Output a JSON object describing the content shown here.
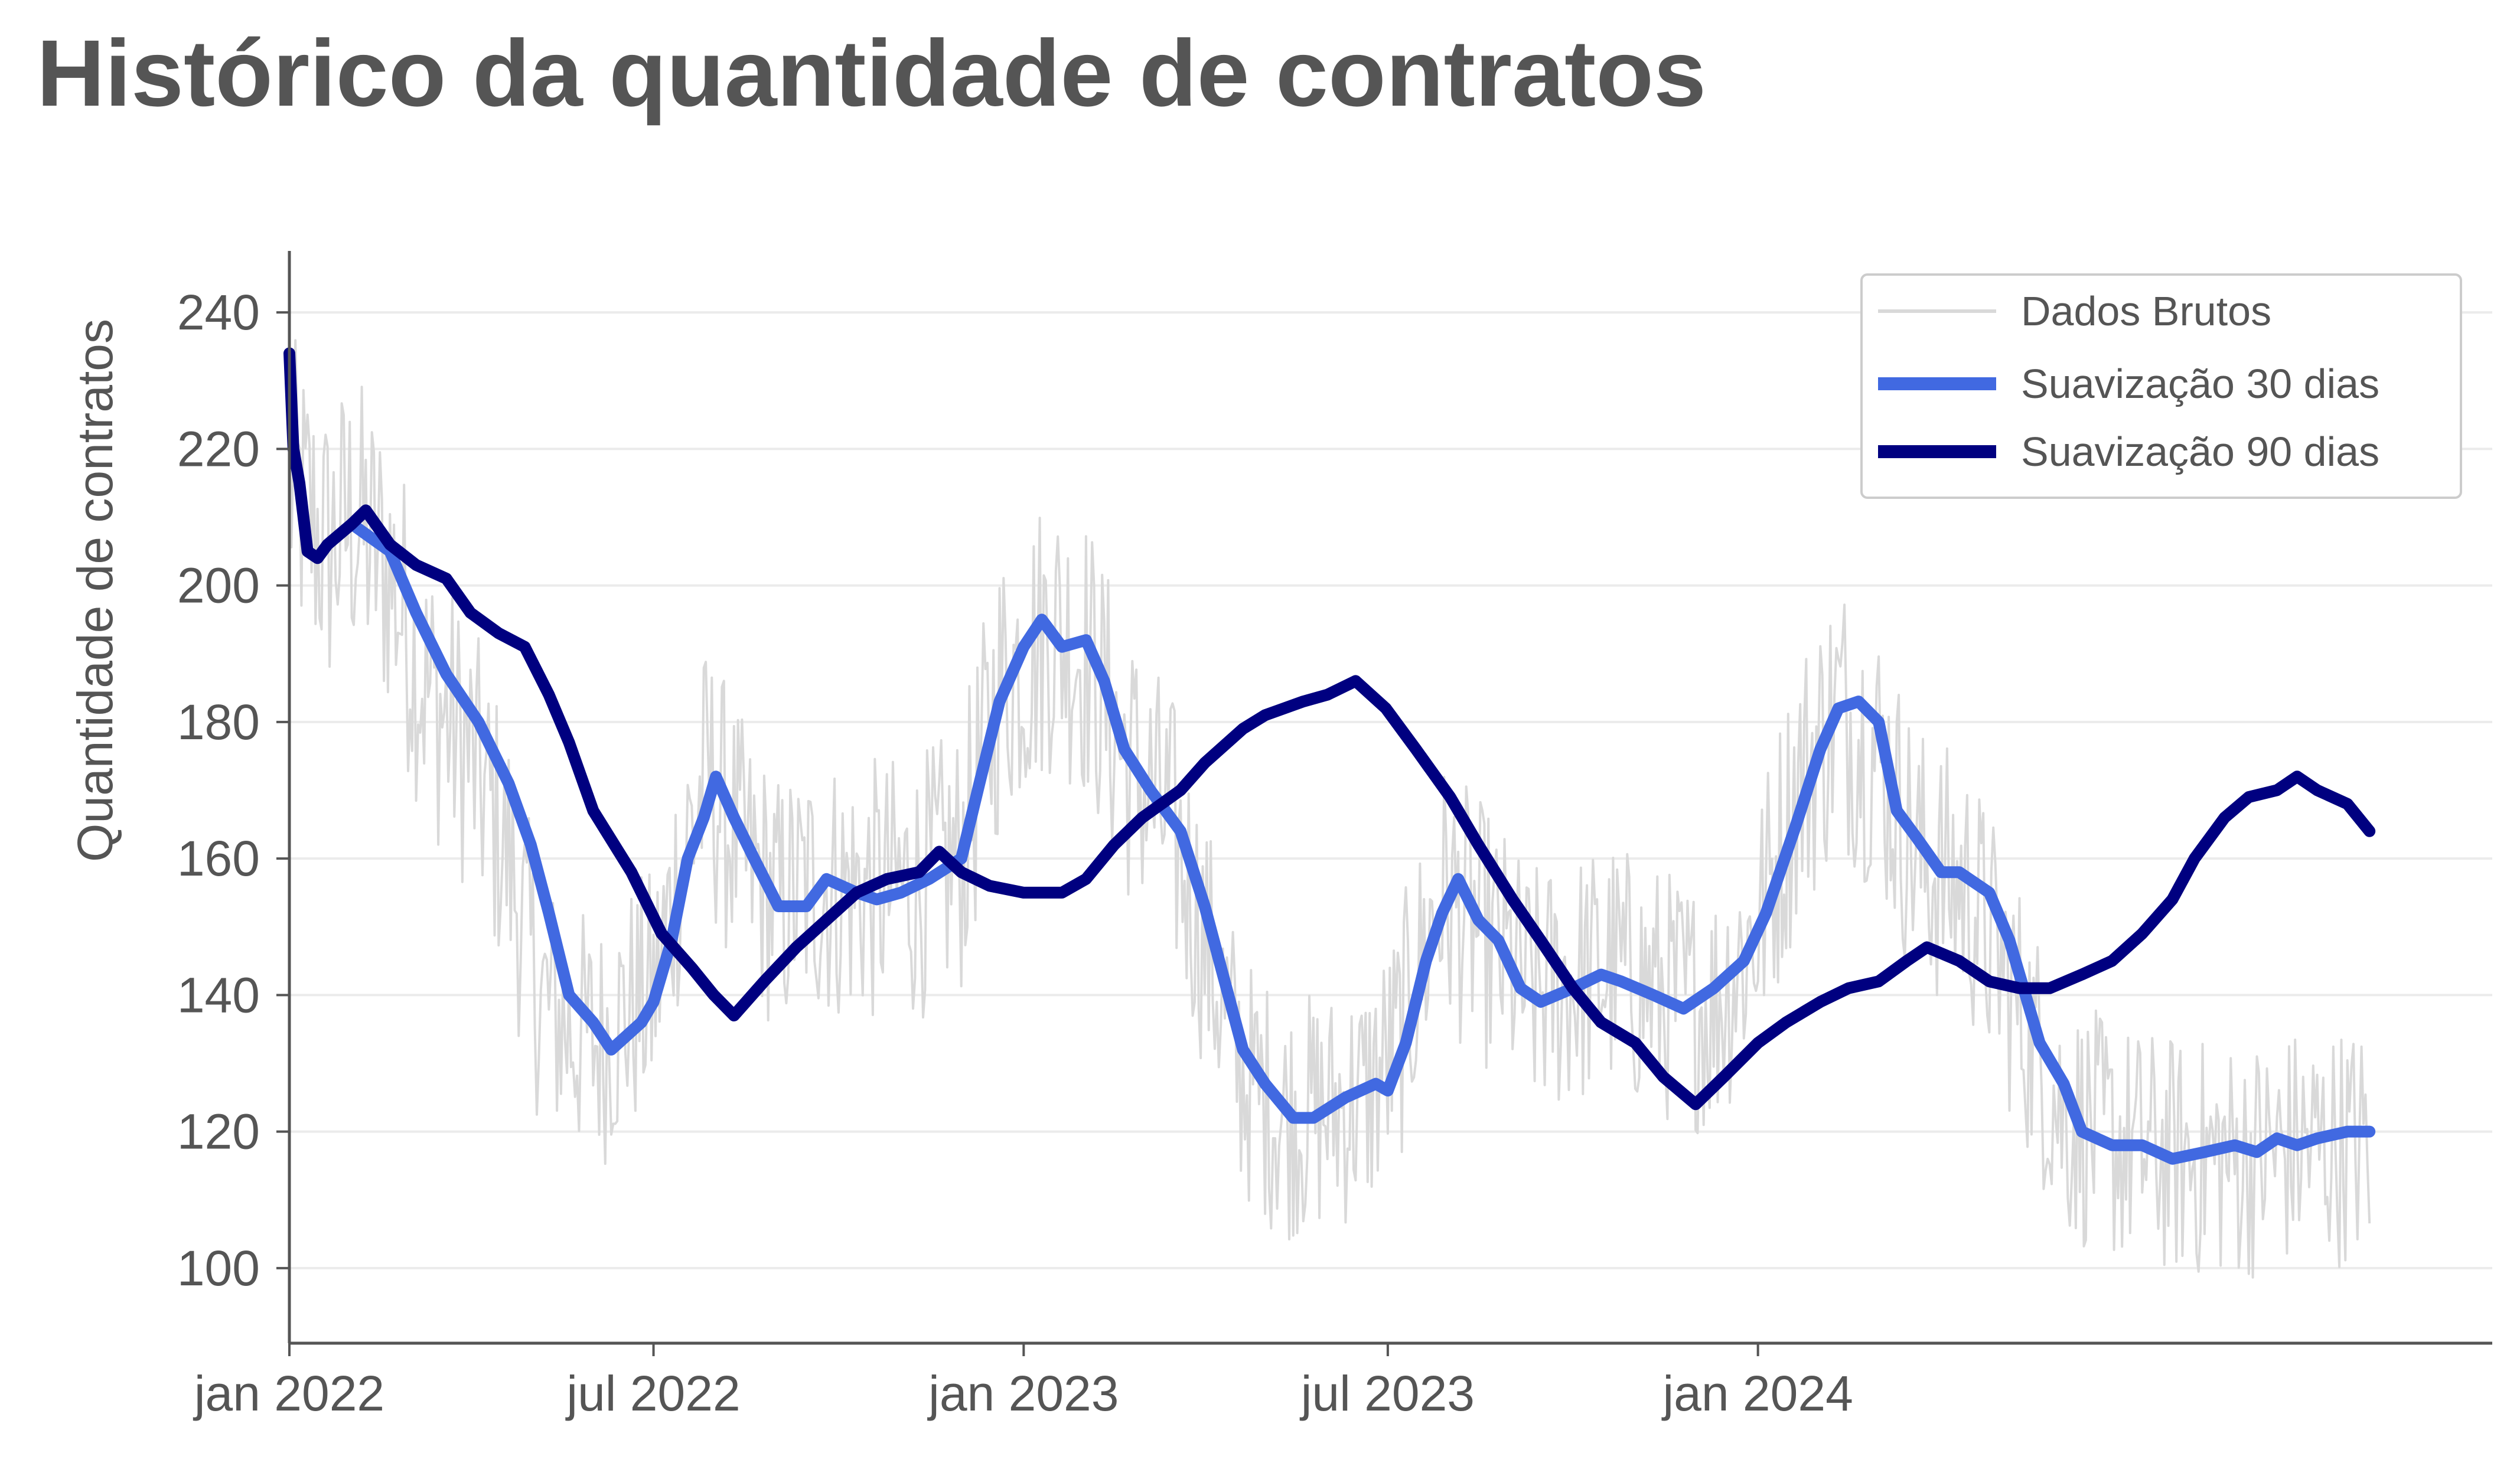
{
  "chart_data": {
    "type": "line",
    "title": "Histórico da quantidade de contratos",
    "xlabel": "",
    "ylabel": "Quantidade de contratos",
    "x_range": [
      "2022-01-01",
      "2024-12-31"
    ],
    "ylim": [
      89,
      249
    ],
    "grid": "horizontal",
    "legend_placement": "top-right",
    "x_ticks": [
      {
        "date": "2022-01-01",
        "label": "jan 2022"
      },
      {
        "date": "2022-07-01",
        "label": "jul 2022"
      },
      {
        "date": "2023-01-01",
        "label": "jan 2023"
      },
      {
        "date": "2023-07-01",
        "label": "jul 2023"
      },
      {
        "date": "2024-01-01",
        "label": "jan 2024"
      }
    ],
    "y_ticks": [
      100,
      120,
      140,
      160,
      180,
      200,
      220,
      240
    ],
    "series": [
      {
        "name": "Dados Brutos",
        "style": "raw",
        "color": "#d9d9d9",
        "trend": [
          [
            "2022-01-01",
            215
          ],
          [
            "2022-01-20",
            205
          ],
          [
            "2022-02-01",
            210
          ],
          [
            "2022-02-20",
            202
          ],
          [
            "2022-03-10",
            185
          ],
          [
            "2022-04-01",
            175
          ],
          [
            "2022-04-20",
            160
          ],
          [
            "2022-05-05",
            140
          ],
          [
            "2022-05-20",
            135
          ],
          [
            "2022-06-05",
            133
          ],
          [
            "2022-06-20",
            138
          ],
          [
            "2022-07-01",
            140
          ],
          [
            "2022-07-15",
            160
          ],
          [
            "2022-07-28",
            172
          ],
          [
            "2022-08-15",
            160
          ],
          [
            "2022-09-01",
            153
          ],
          [
            "2022-09-20",
            156
          ],
          [
            "2022-10-15",
            155
          ],
          [
            "2022-11-10",
            156
          ],
          [
            "2022-12-01",
            160
          ],
          [
            "2022-12-20",
            185
          ],
          [
            "2023-01-15",
            194
          ],
          [
            "2023-02-01",
            190
          ],
          [
            "2023-02-20",
            175
          ],
          [
            "2023-03-15",
            165
          ],
          [
            "2023-04-01",
            148
          ],
          [
            "2023-04-20",
            128
          ],
          [
            "2023-05-10",
            122
          ],
          [
            "2023-06-01",
            123
          ],
          [
            "2023-06-20",
            125
          ],
          [
            "2023-07-05",
            132
          ],
          [
            "2023-07-28",
            155
          ],
          [
            "2023-08-20",
            148
          ],
          [
            "2023-09-10",
            140
          ],
          [
            "2023-10-01",
            142
          ],
          [
            "2023-10-20",
            144
          ],
          [
            "2023-11-15",
            140
          ],
          [
            "2023-12-10",
            138
          ],
          [
            "2024-01-01",
            150
          ],
          [
            "2024-01-20",
            170
          ],
          [
            "2024-02-10",
            182
          ],
          [
            "2024-03-01",
            175
          ],
          [
            "2024-03-20",
            160
          ],
          [
            "2024-04-15",
            155
          ],
          [
            "2024-05-10",
            138
          ],
          [
            "2024-06-01",
            122
          ],
          [
            "2024-07-01",
            118
          ],
          [
            "2024-08-01",
            116
          ],
          [
            "2024-09-01",
            116
          ],
          [
            "2024-10-01",
            118
          ],
          [
            "2024-10-31",
            118
          ]
        ]
      },
      {
        "name": "Suavização 30 dias",
        "style": "smooth30",
        "color": "#4169e1",
        "points": [
          [
            "2022-02-01",
            209
          ],
          [
            "2022-02-20",
            205
          ],
          [
            "2022-03-05",
            196
          ],
          [
            "2022-03-20",
            187
          ],
          [
            "2022-04-05",
            180
          ],
          [
            "2022-04-20",
            171
          ],
          [
            "2022-05-01",
            162
          ],
          [
            "2022-05-10",
            152
          ],
          [
            "2022-05-20",
            140
          ],
          [
            "2022-06-01",
            136
          ],
          [
            "2022-06-10",
            132
          ],
          [
            "2022-06-25",
            136
          ],
          [
            "2022-07-01",
            139
          ],
          [
            "2022-07-10",
            148
          ],
          [
            "2022-07-18",
            160
          ],
          [
            "2022-07-26",
            166
          ],
          [
            "2022-08-01",
            172
          ],
          [
            "2022-08-10",
            166
          ],
          [
            "2022-08-20",
            160
          ],
          [
            "2022-09-01",
            153
          ],
          [
            "2022-09-15",
            153
          ],
          [
            "2022-09-25",
            157
          ],
          [
            "2022-10-10",
            155
          ],
          [
            "2022-10-20",
            154
          ],
          [
            "2022-11-01",
            155
          ],
          [
            "2022-11-15",
            157
          ],
          [
            "2022-12-01",
            160
          ],
          [
            "2022-12-10",
            171
          ],
          [
            "2022-12-20",
            183
          ],
          [
            "2023-01-01",
            191
          ],
          [
            "2023-01-10",
            195
          ],
          [
            "2023-01-20",
            191
          ],
          [
            "2023-02-01",
            192
          ],
          [
            "2023-02-10",
            186
          ],
          [
            "2023-02-20",
            176
          ],
          [
            "2023-03-05",
            170
          ],
          [
            "2023-03-20",
            164
          ],
          [
            "2023-04-01",
            153
          ],
          [
            "2023-04-10",
            143
          ],
          [
            "2023-04-20",
            132
          ],
          [
            "2023-05-01",
            127
          ],
          [
            "2023-05-15",
            122
          ],
          [
            "2023-05-25",
            122
          ],
          [
            "2023-06-10",
            125
          ],
          [
            "2023-06-25",
            127
          ],
          [
            "2023-07-01",
            126
          ],
          [
            "2023-07-10",
            133
          ],
          [
            "2023-07-20",
            145
          ],
          [
            "2023-07-28",
            152
          ],
          [
            "2023-08-05",
            157
          ],
          [
            "2023-08-15",
            151
          ],
          [
            "2023-08-25",
            148
          ],
          [
            "2023-09-05",
            141
          ],
          [
            "2023-09-15",
            139
          ],
          [
            "2023-10-01",
            141
          ],
          [
            "2023-10-15",
            143
          ],
          [
            "2023-10-25",
            142
          ],
          [
            "2023-11-10",
            140
          ],
          [
            "2023-11-25",
            138
          ],
          [
            "2023-12-10",
            141
          ],
          [
            "2023-12-25",
            145
          ],
          [
            "2024-01-05",
            152
          ],
          [
            "2024-01-20",
            165
          ],
          [
            "2024-02-01",
            176
          ],
          [
            "2024-02-10",
            182
          ],
          [
            "2024-02-20",
            183
          ],
          [
            "2024-03-01",
            180
          ],
          [
            "2024-03-10",
            167
          ],
          [
            "2024-03-20",
            163
          ],
          [
            "2024-04-01",
            158
          ],
          [
            "2024-04-10",
            158
          ],
          [
            "2024-04-25",
            155
          ],
          [
            "2024-05-05",
            148
          ],
          [
            "2024-05-20",
            133
          ],
          [
            "2024-06-01",
            127
          ],
          [
            "2024-06-10",
            120
          ],
          [
            "2024-06-25",
            118
          ],
          [
            "2024-07-10",
            118
          ],
          [
            "2024-07-25",
            116
          ],
          [
            "2024-08-10",
            117
          ],
          [
            "2024-08-25",
            118
          ],
          [
            "2024-09-05",
            117
          ],
          [
            "2024-09-15",
            119
          ],
          [
            "2024-09-25",
            118
          ],
          [
            "2024-10-05",
            119
          ],
          [
            "2024-10-20",
            120
          ],
          [
            "2024-10-31",
            120
          ]
        ]
      },
      {
        "name": "Suavização 90 dias",
        "style": "smooth90",
        "color": "#000080",
        "points": [
          [
            "2022-01-01",
            234
          ],
          [
            "2022-01-03",
            220
          ],
          [
            "2022-01-06",
            215
          ],
          [
            "2022-01-10",
            205
          ],
          [
            "2022-01-15",
            204
          ],
          [
            "2022-01-20",
            206
          ],
          [
            "2022-02-01",
            209
          ],
          [
            "2022-02-08",
            211
          ],
          [
            "2022-02-20",
            206
          ],
          [
            "2022-03-05",
            203
          ],
          [
            "2022-03-20",
            201
          ],
          [
            "2022-04-01",
            196
          ],
          [
            "2022-04-15",
            193
          ],
          [
            "2022-04-28",
            191
          ],
          [
            "2022-05-10",
            184
          ],
          [
            "2022-05-20",
            177
          ],
          [
            "2022-06-01",
            167
          ],
          [
            "2022-06-20",
            158
          ],
          [
            "2022-07-05",
            149
          ],
          [
            "2022-07-20",
            144
          ],
          [
            "2022-07-31",
            140
          ],
          [
            "2022-08-10",
            137
          ],
          [
            "2022-08-25",
            142
          ],
          [
            "2022-09-10",
            147
          ],
          [
            "2022-09-25",
            151
          ],
          [
            "2022-10-10",
            155
          ],
          [
            "2022-10-25",
            157
          ],
          [
            "2022-11-10",
            158
          ],
          [
            "2022-11-20",
            161
          ],
          [
            "2022-12-01",
            158
          ],
          [
            "2022-12-15",
            156
          ],
          [
            "2023-01-01",
            155
          ],
          [
            "2023-01-20",
            155
          ],
          [
            "2023-02-01",
            157
          ],
          [
            "2023-02-15",
            162
          ],
          [
            "2023-03-01",
            166
          ],
          [
            "2023-03-20",
            170
          ],
          [
            "2023-04-01",
            174
          ],
          [
            "2023-04-20",
            179
          ],
          [
            "2023-05-01",
            181
          ],
          [
            "2023-05-20",
            183
          ],
          [
            "2023-06-01",
            184
          ],
          [
            "2023-06-15",
            186
          ],
          [
            "2023-06-30",
            182
          ],
          [
            "2023-07-15",
            176
          ],
          [
            "2023-08-01",
            169
          ],
          [
            "2023-08-15",
            162
          ],
          [
            "2023-09-01",
            154
          ],
          [
            "2023-09-15",
            148
          ],
          [
            "2023-10-01",
            141
          ],
          [
            "2023-10-15",
            136
          ],
          [
            "2023-11-01",
            133
          ],
          [
            "2023-11-15",
            128
          ],
          [
            "2023-12-01",
            124
          ],
          [
            "2023-12-15",
            128
          ],
          [
            "2024-01-01",
            133
          ],
          [
            "2024-01-15",
            136
          ],
          [
            "2024-02-01",
            139
          ],
          [
            "2024-02-15",
            141
          ],
          [
            "2024-03-01",
            142
          ],
          [
            "2024-03-15",
            145
          ],
          [
            "2024-03-25",
            147
          ],
          [
            "2024-04-10",
            145
          ],
          [
            "2024-04-25",
            142
          ],
          [
            "2024-05-10",
            141
          ],
          [
            "2024-05-25",
            141
          ],
          [
            "2024-06-10",
            143
          ],
          [
            "2024-06-25",
            145
          ],
          [
            "2024-07-10",
            149
          ],
          [
            "2024-07-25",
            154
          ],
          [
            "2024-08-05",
            160
          ],
          [
            "2024-08-20",
            166
          ],
          [
            "2024-09-01",
            169
          ],
          [
            "2024-09-15",
            170
          ],
          [
            "2024-09-25",
            172
          ],
          [
            "2024-10-05",
            170
          ],
          [
            "2024-10-20",
            168
          ],
          [
            "2024-10-31",
            164
          ]
        ]
      }
    ]
  }
}
